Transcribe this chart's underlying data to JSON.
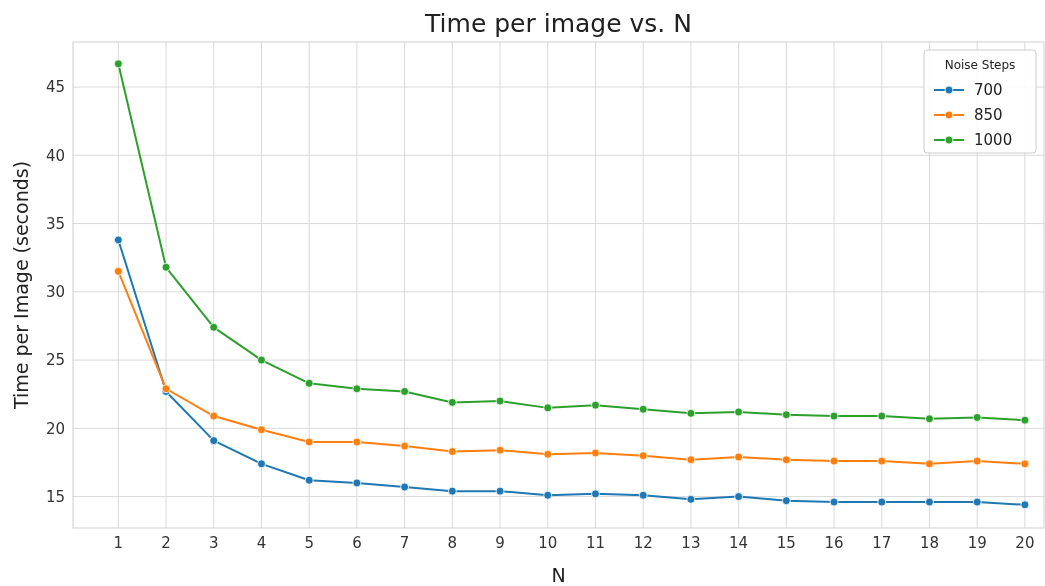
{
  "chart_data": {
    "type": "line",
    "title": "Time per image vs. N",
    "xlabel": "N",
    "ylabel": "Time per Image (seconds)",
    "legend_title": "Noise Steps",
    "legend": "top right",
    "grid": true,
    "marker": "circle",
    "line_style": "solid",
    "x": [
      1,
      2,
      3,
      4,
      5,
      6,
      7,
      8,
      9,
      10,
      11,
      12,
      13,
      14,
      15,
      16,
      17,
      18,
      19,
      20
    ],
    "xlim": [
      0.05,
      20.4
    ],
    "xticks": [
      1,
      2,
      3,
      4,
      5,
      6,
      7,
      8,
      9,
      10,
      11,
      12,
      13,
      14,
      15,
      16,
      17,
      18,
      19,
      20
    ],
    "ylim": [
      12.7,
      48.3
    ],
    "yticks": [
      15,
      20,
      25,
      30,
      35,
      40,
      45
    ],
    "series": [
      {
        "name": "700",
        "color": "#1f77b4",
        "values": [
          33.8,
          22.7,
          19.1,
          17.4,
          16.2,
          16.0,
          15.7,
          15.4,
          15.4,
          15.1,
          15.2,
          15.1,
          14.8,
          15.0,
          14.7,
          14.6,
          14.6,
          14.6,
          14.6,
          14.4
        ]
      },
      {
        "name": "850",
        "color": "#ff7f0e",
        "values": [
          31.5,
          22.9,
          20.9,
          19.9,
          19.0,
          19.0,
          18.7,
          18.3,
          18.4,
          18.1,
          18.2,
          18.0,
          17.7,
          17.9,
          17.7,
          17.6,
          17.6,
          17.4,
          17.6,
          17.4
        ]
      },
      {
        "name": "1000",
        "color": "#2ca02c",
        "values": [
          46.7,
          31.8,
          27.4,
          25.0,
          23.3,
          22.9,
          22.7,
          21.9,
          22.0,
          21.5,
          21.7,
          21.4,
          21.1,
          21.2,
          21.0,
          20.9,
          20.9,
          20.7,
          20.8,
          20.6
        ]
      }
    ]
  }
}
